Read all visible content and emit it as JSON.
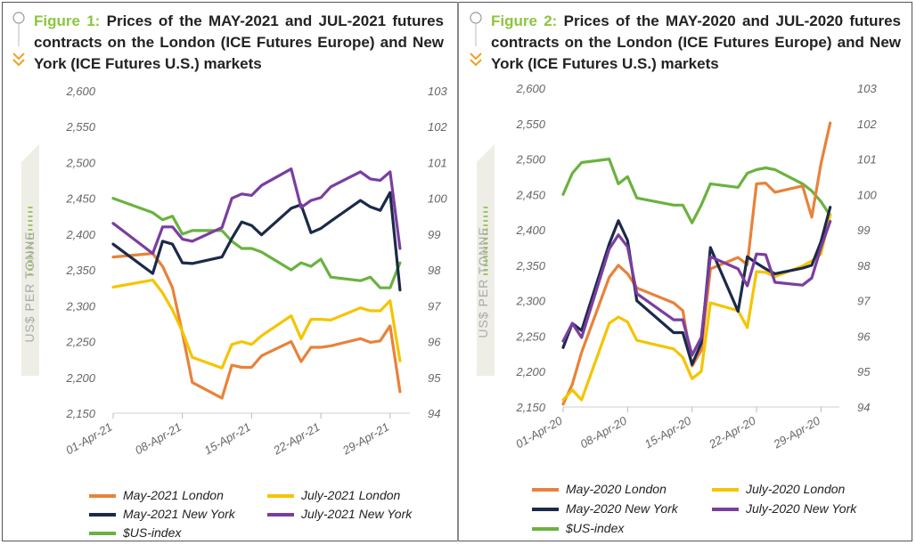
{
  "charts": [
    {
      "figure_label": "Figure 1:",
      "title_text": "Prices of the MAY-2021 and JUL-2021 futures contracts on the London (ICE Futures Europe) and New York (ICE Futures U.S.) markets",
      "ylabel": "US$ PER TONNE",
      "left_ticks": [
        "2,600",
        "2,550",
        "2,500",
        "2,450",
        "2,400",
        "2,350",
        "2,300",
        "2,250",
        "2,200",
        "2,150"
      ],
      "right_ticks": [
        "103",
        "102",
        "101",
        "100",
        "99",
        "98",
        "97",
        "96",
        "95",
        "94"
      ],
      "x_ticks": [
        "01-Apr-21",
        "08-Apr-21",
        "15-Apr-21",
        "22-Apr-21",
        "29-Apr-21"
      ],
      "legend": [
        "May-2021 London",
        "July-2021 London",
        "May-2021 New York",
        "July-2021 New York",
        "$US-index"
      ]
    },
    {
      "figure_label": "Figure 2:",
      "title_text": "Prices of the MAY-2020 and JUL-2020 futures contracts on the London (ICE Futures Europe) and New York (ICE Futures U.S.) markets",
      "ylabel": "US$ PER TONNE",
      "left_ticks": [
        "2,600",
        "2,550",
        "2,500",
        "2,450",
        "2,400",
        "2,350",
        "2,300",
        "2,250",
        "2,200",
        "2,150"
      ],
      "right_ticks": [
        "103",
        "102",
        "101",
        "100",
        "99",
        "98",
        "97",
        "96",
        "95",
        "94"
      ],
      "x_ticks": [
        "01-Apr-20",
        "08-Apr-20",
        "15-Apr-20",
        "22-Apr-20",
        "29-Apr-20"
      ],
      "legend": [
        "May-2020 London",
        "July-2020 London",
        "May-2020 New York",
        "July-2020 New York",
        "$US-index"
      ]
    }
  ],
  "chart_data": [
    {
      "type": "line",
      "title": "Prices of the MAY-2021 and JUL-2021 futures contracts on the London (ICE Futures Europe) and New York (ICE Futures U.S.) markets",
      "ylabel": "US$ PER TONNE",
      "ylim": [
        2150,
        2600
      ],
      "y2lim": [
        94,
        103
      ],
      "x_unit": "day of April 2021",
      "colors": {
        "may_london": "#e8823a",
        "jul_london": "#f5c400",
        "may_ny": "#1b2a4a",
        "jul_ny": "#7a3ea0",
        "usd": "#6ab23f"
      },
      "series": [
        {
          "name": "May-2021 London",
          "axis": "left",
          "x": [
            1,
            5,
            6,
            7,
            8,
            9,
            12,
            13,
            14,
            15,
            16,
            19,
            20,
            21,
            22,
            23,
            26,
            27,
            28,
            29,
            30
          ],
          "y": [
            2368,
            2373,
            2355,
            2325,
            2262,
            2193,
            2171,
            2217,
            2214,
            2214,
            2230,
            2250,
            2222,
            2242,
            2242,
            2244,
            2254,
            2249,
            2251,
            2272,
            2180
          ]
        },
        {
          "name": "July-2021 London",
          "axis": "left",
          "x": [
            1,
            5,
            6,
            7,
            8,
            9,
            12,
            13,
            14,
            15,
            16,
            19,
            20,
            21,
            22,
            23,
            26,
            27,
            28,
            29,
            30
          ],
          "y": [
            2326,
            2336,
            2318,
            2294,
            2264,
            2228,
            2213,
            2246,
            2250,
            2246,
            2258,
            2286,
            2254,
            2281,
            2281,
            2280,
            2297,
            2293,
            2293,
            2307,
            2223
          ]
        },
        {
          "name": "May-2021 New York",
          "axis": "left",
          "x": [
            1,
            5,
            6,
            7,
            8,
            9,
            12,
            13,
            14,
            15,
            16,
            19,
            20,
            21,
            22,
            23,
            26,
            27,
            28,
            29,
            30
          ],
          "y": [
            2386,
            2345,
            2390,
            2386,
            2360,
            2359,
            2368,
            2394,
            2417,
            2412,
            2399,
            2436,
            2441,
            2402,
            2408,
            2418,
            2447,
            2438,
            2433,
            2458,
            2322
          ]
        },
        {
          "name": "July-2021 New York",
          "axis": "left",
          "x": [
            1,
            5,
            6,
            7,
            8,
            9,
            12,
            13,
            14,
            15,
            16,
            19,
            20,
            21,
            22,
            23,
            26,
            27,
            28,
            29,
            30
          ],
          "y": [
            2415,
            2373,
            2410,
            2410,
            2393,
            2390,
            2409,
            2450,
            2456,
            2454,
            2468,
            2491,
            2437,
            2447,
            2451,
            2466,
            2487,
            2477,
            2475,
            2487,
            2380
          ]
        },
        {
          "name": "$US-index",
          "axis": "right",
          "x": [
            1,
            5,
            6,
            7,
            8,
            9,
            12,
            13,
            14,
            15,
            16,
            19,
            20,
            21,
            22,
            23,
            26,
            27,
            28,
            29,
            30
          ],
          "y": [
            100.0,
            99.6,
            99.4,
            99.5,
            99.0,
            99.1,
            99.1,
            98.8,
            98.6,
            98.6,
            98.5,
            98.0,
            98.2,
            98.1,
            98.3,
            97.8,
            97.7,
            97.8,
            97.5,
            97.5,
            98.2
          ]
        }
      ]
    },
    {
      "type": "line",
      "title": "Prices of the MAY-2020 and JUL-2020 futures contracts on the London (ICE Futures Europe) and New York (ICE Futures U.S.) markets",
      "ylabel": "US$ PER TONNE",
      "ylim": [
        2150,
        2600
      ],
      "y2lim": [
        94,
        103
      ],
      "x_unit": "day of April 2020",
      "colors": {
        "may_london": "#e8823a",
        "jul_london": "#f5c400",
        "may_ny": "#1b2a4a",
        "jul_ny": "#7a3ea0",
        "usd": "#6ab23f"
      },
      "series": [
        {
          "name": "May-2020 London",
          "axis": "left",
          "x": [
            1,
            2,
            3,
            6,
            7,
            8,
            9,
            13,
            14,
            15,
            16,
            17,
            20,
            21,
            22,
            23,
            24,
            27,
            28,
            29,
            30
          ],
          "y": [
            2154,
            2182,
            2227,
            2333,
            2350,
            2338,
            2318,
            2297,
            2286,
            2208,
            2230,
            2345,
            2361,
            2351,
            2465,
            2466,
            2453,
            2462,
            2418,
            2493,
            2551
          ]
        },
        {
          "name": "July-2020 London",
          "axis": "left",
          "x": [
            1,
            2,
            3,
            6,
            7,
            8,
            9,
            13,
            14,
            15,
            16,
            17,
            20,
            21,
            22,
            23,
            24,
            27,
            28,
            29,
            30
          ],
          "y": [
            2160,
            2174,
            2160,
            2268,
            2277,
            2270,
            2244,
            2232,
            2220,
            2190,
            2200,
            2297,
            2286,
            2262,
            2341,
            2340,
            2334,
            2349,
            2356,
            2366,
            2422
          ]
        },
        {
          "name": "May-2020 New York",
          "axis": "left",
          "x": [
            1,
            2,
            3,
            6,
            7,
            8,
            9,
            13,
            14,
            15,
            16,
            17,
            20,
            21,
            22,
            23,
            24,
            27,
            28,
            29,
            30
          ],
          "y": [
            2234,
            2268,
            2258,
            2380,
            2413,
            2385,
            2300,
            2255,
            2255,
            2210,
            2240,
            2375,
            2285,
            2362,
            2353,
            2345,
            2338,
            2346,
            2350,
            2383,
            2432
          ]
        },
        {
          "name": "July-2020 New York",
          "axis": "left",
          "x": [
            1,
            2,
            3,
            6,
            7,
            8,
            9,
            13,
            14,
            15,
            16,
            17,
            20,
            21,
            22,
            23,
            24,
            27,
            28,
            29,
            30
          ],
          "y": [
            2243,
            2268,
            2248,
            2373,
            2393,
            2376,
            2310,
            2273,
            2273,
            2223,
            2248,
            2362,
            2345,
            2321,
            2366,
            2365,
            2326,
            2322,
            2332,
            2375,
            2412
          ]
        },
        {
          "name": "$US-index",
          "axis": "right",
          "x": [
            1,
            2,
            3,
            6,
            7,
            8,
            9,
            13,
            14,
            15,
            16,
            17,
            20,
            21,
            22,
            23,
            24,
            27,
            28,
            29,
            30
          ],
          "y": [
            100.0,
            100.6,
            100.9,
            101.0,
            100.3,
            100.5,
            99.9,
            99.7,
            99.7,
            99.2,
            99.7,
            100.3,
            100.2,
            100.6,
            100.7,
            100.75,
            100.7,
            100.3,
            100.1,
            99.8,
            99.4
          ]
        }
      ]
    }
  ]
}
